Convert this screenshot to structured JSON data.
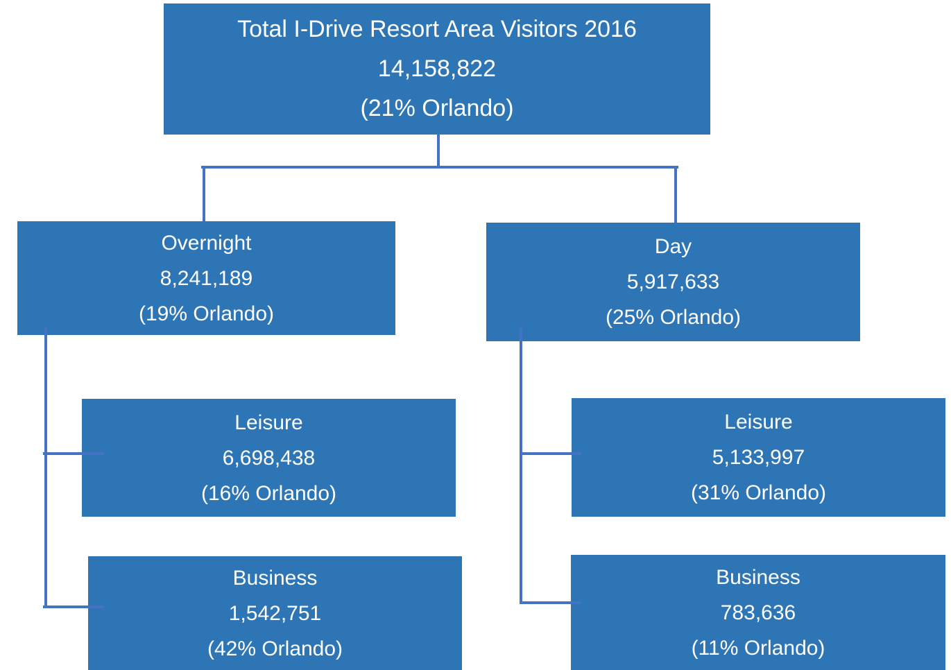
{
  "nodes": [
    {
      "label": "Total I-Drive Resort Area Visitors 2016",
      "value": "14,158,822",
      "share": "(21% Orlando)"
    },
    {
      "label": "Overnight",
      "value": "8,241,189",
      "share": "(19% Orlando)"
    },
    {
      "label": "Day",
      "value": "5,917,633",
      "share": "(25% Orlando)"
    },
    {
      "label": "Leisure",
      "value": "6,698,438",
      "share": "(16% Orlando)"
    },
    {
      "label": "Business",
      "value": "1,542,751",
      "share": "(42% Orlando)"
    },
    {
      "label": "Leisure",
      "value": "5,133,997",
      "share": "(31% Orlando)"
    },
    {
      "label": "Business",
      "value": "783,636",
      "share": "(11% Orlando)"
    }
  ]
}
